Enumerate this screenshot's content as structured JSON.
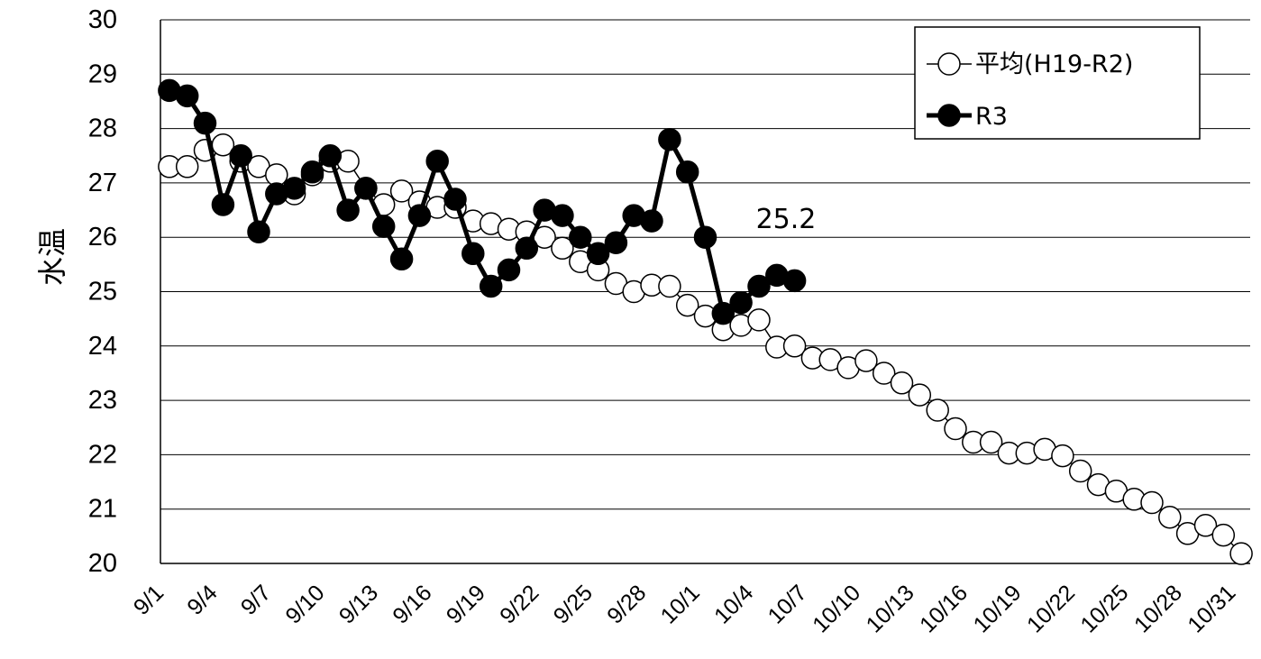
{
  "chart_data": {
    "type": "line",
    "ylabel": "水温",
    "xlabel": "",
    "title": "",
    "ylim": [
      20,
      30
    ],
    "yticks": [
      "20",
      "21",
      "22",
      "23",
      "24",
      "25",
      "26",
      "27",
      "28",
      "29",
      "30"
    ],
    "x_tick_labels": [
      "9/1",
      "9/4",
      "9/7",
      "9/10",
      "9/13",
      "9/16",
      "9/19",
      "9/22",
      "9/25",
      "9/28",
      "10/1",
      "10/4",
      "10/7",
      "10/10",
      "10/13",
      "10/16",
      "10/19",
      "10/22",
      "10/25",
      "10/28",
      "10/31"
    ],
    "grid": "horizontal",
    "legend_position": "top-right",
    "series": [
      {
        "name": "平均(H19-R2)",
        "marker": "open-circle",
        "color": "#000000",
        "values": [
          27.3,
          27.3,
          27.6,
          27.7,
          27.4,
          27.3,
          27.15,
          26.8,
          27.15,
          27.4,
          27.4,
          26.9,
          26.6,
          26.85,
          26.65,
          26.55,
          26.55,
          26.3,
          26.25,
          26.15,
          26.1,
          26.0,
          25.8,
          25.55,
          25.4,
          25.15,
          25.0,
          25.12,
          25.1,
          24.75,
          24.55,
          24.3,
          24.38,
          24.48,
          23.98,
          24.0,
          23.78,
          23.75,
          23.6,
          23.73,
          23.5,
          23.32,
          23.1,
          22.82,
          22.48,
          22.23,
          22.23,
          22.03,
          22.03,
          22.1,
          21.98,
          21.7,
          21.45,
          21.33,
          21.18,
          21.12,
          20.85,
          20.55,
          20.7,
          20.52,
          20.18
        ]
      },
      {
        "name": "R3",
        "marker": "filled-circle",
        "color": "#000000",
        "values": [
          28.7,
          28.6,
          28.1,
          26.6,
          27.5,
          26.1,
          26.8,
          26.9,
          27.2,
          27.5,
          26.5,
          26.9,
          26.2,
          25.6,
          26.4,
          27.4,
          26.7,
          25.7,
          25.1,
          25.4,
          25.8,
          26.5,
          26.4,
          26.0,
          25.7,
          25.9,
          26.4,
          26.3,
          27.8,
          27.2,
          26.0,
          24.6,
          24.8,
          25.1,
          25.3,
          25.2
        ]
      }
    ],
    "annotations": [
      {
        "text": "25.2",
        "near_series": "R3",
        "near_date": "10/6"
      }
    ]
  }
}
